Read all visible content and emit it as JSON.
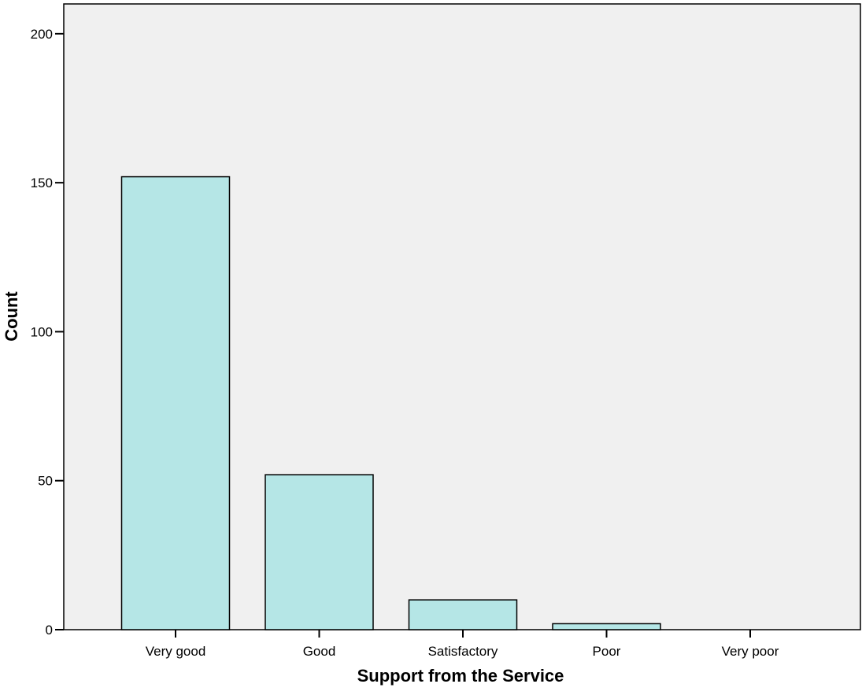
{
  "chart_data": {
    "type": "bar",
    "categories": [
      "Very good",
      "Good",
      "Satisfactory",
      "Poor",
      "Very poor"
    ],
    "values": [
      152,
      52,
      10,
      2,
      0
    ],
    "xlabel": "Support from the Service",
    "ylabel": "Count",
    "ylim": [
      0,
      210
    ],
    "yticks": [
      0,
      50,
      100,
      150,
      200
    ],
    "grid": false,
    "colors": {
      "bar_fill": "#b5e6e6",
      "bar_stroke": "#000000",
      "plot_background": "#f0f0f0"
    }
  }
}
